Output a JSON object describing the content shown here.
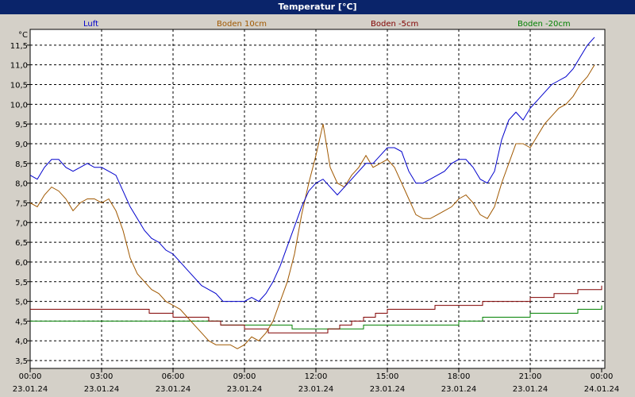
{
  "window": {
    "title": "Temperatur [°C]"
  },
  "chart_data": {
    "type": "line",
    "title": "Temperatur [°C]",
    "ylabel": "°C",
    "ylim": [
      3.3,
      11.9
    ],
    "yticks": [
      "3,5",
      "4,0",
      "4,5",
      "5,0",
      "5,5",
      "6,0",
      "6,5",
      "7,0",
      "7,5",
      "8,0",
      "8,5",
      "9,0",
      "9,5",
      "10,0",
      "10,5",
      "11,0",
      "11,5"
    ],
    "xlim": [
      0,
      24
    ],
    "xticks": [
      {
        "time": "00:00",
        "date": "23.01.24"
      },
      {
        "time": "03:00",
        "date": "23.01.24"
      },
      {
        "time": "06:00",
        "date": "23.01.24"
      },
      {
        "time": "09:00",
        "date": "23.01.24"
      },
      {
        "time": "12:00",
        "date": "23.01.24"
      },
      {
        "time": "15:00",
        "date": "23.01.24"
      },
      {
        "time": "18:00",
        "date": "23.01.24"
      },
      {
        "time": "21:00",
        "date": "23.01.24"
      },
      {
        "time": "00:00",
        "date": "24.01.24"
      }
    ],
    "grid": true,
    "legend_position": "top",
    "series": [
      {
        "name": "Luft",
        "color": "#0000cc",
        "x": [
          0,
          0.3,
          0.6,
          0.9,
          1.2,
          1.5,
          1.8,
          2.1,
          2.4,
          2.7,
          3.0,
          3.3,
          3.6,
          3.9,
          4.2,
          4.5,
          4.8,
          5.1,
          5.4,
          5.7,
          6.0,
          6.3,
          6.6,
          6.9,
          7.2,
          7.5,
          7.8,
          8.1,
          8.4,
          8.7,
          9.0,
          9.3,
          9.6,
          9.9,
          10.2,
          10.5,
          10.8,
          11.1,
          11.4,
          11.7,
          12.0,
          12.3,
          12.6,
          12.9,
          13.2,
          13.5,
          13.8,
          14.1,
          14.4,
          14.7,
          15.0,
          15.3,
          15.6,
          15.9,
          16.2,
          16.5,
          16.8,
          17.1,
          17.4,
          17.7,
          18.0,
          18.3,
          18.6,
          18.9,
          19.2,
          19.5,
          19.8,
          20.1,
          20.4,
          20.7,
          21.0,
          21.3,
          21.6,
          21.9,
          22.2,
          22.5,
          22.8,
          23.1,
          23.4,
          23.7
        ],
        "values": [
          8.2,
          8.1,
          8.4,
          8.6,
          8.6,
          8.4,
          8.3,
          8.4,
          8.5,
          8.4,
          8.4,
          8.3,
          8.2,
          7.8,
          7.4,
          7.1,
          6.8,
          6.6,
          6.5,
          6.3,
          6.2,
          6.0,
          5.8,
          5.6,
          5.4,
          5.3,
          5.2,
          5.0,
          5.0,
          5.0,
          5.0,
          5.1,
          5.0,
          5.2,
          5.5,
          5.9,
          6.4,
          6.9,
          7.4,
          7.8,
          8.0,
          8.1,
          7.9,
          7.7,
          7.9,
          8.1,
          8.3,
          8.5,
          8.5,
          8.7,
          8.9,
          8.9,
          8.8,
          8.3,
          8.0,
          8.0,
          8.1,
          8.2,
          8.3,
          8.5,
          8.6,
          8.6,
          8.4,
          8.1,
          8.0,
          8.3,
          9.1,
          9.6,
          9.8,
          9.6,
          9.9,
          10.1,
          10.3,
          10.5,
          10.6,
          10.7,
          10.9,
          11.2,
          11.5,
          11.7
        ]
      },
      {
        "name": "Boden 10cm",
        "color": "#a05800",
        "x": [
          0,
          0.3,
          0.6,
          0.9,
          1.2,
          1.5,
          1.8,
          2.1,
          2.4,
          2.7,
          3.0,
          3.3,
          3.6,
          3.9,
          4.2,
          4.5,
          4.8,
          5.1,
          5.4,
          5.7,
          6.0,
          6.3,
          6.6,
          6.9,
          7.2,
          7.5,
          7.8,
          8.1,
          8.4,
          8.7,
          9.0,
          9.3,
          9.6,
          9.9,
          10.2,
          10.5,
          10.8,
          11.1,
          11.4,
          11.7,
          12.0,
          12.3,
          12.6,
          12.9,
          13.2,
          13.5,
          13.8,
          14.1,
          14.4,
          14.7,
          15.0,
          15.3,
          15.6,
          15.9,
          16.2,
          16.5,
          16.8,
          17.1,
          17.4,
          17.7,
          18.0,
          18.3,
          18.6,
          18.9,
          19.2,
          19.5,
          19.8,
          20.1,
          20.4,
          20.7,
          21.0,
          21.3,
          21.6,
          21.9,
          22.2,
          22.5,
          22.8,
          23.1,
          23.4,
          23.7
        ],
        "values": [
          7.5,
          7.4,
          7.7,
          7.9,
          7.8,
          7.6,
          7.3,
          7.5,
          7.6,
          7.6,
          7.5,
          7.6,
          7.3,
          6.8,
          6.1,
          5.7,
          5.5,
          5.3,
          5.2,
          5.0,
          4.9,
          4.8,
          4.6,
          4.4,
          4.2,
          4.0,
          3.9,
          3.9,
          3.9,
          3.8,
          3.9,
          4.1,
          4.0,
          4.2,
          4.5,
          5.0,
          5.5,
          6.2,
          7.2,
          8.0,
          8.7,
          9.5,
          8.4,
          8.0,
          7.9,
          8.2,
          8.4,
          8.7,
          8.4,
          8.5,
          8.6,
          8.4,
          8.0,
          7.6,
          7.2,
          7.1,
          7.1,
          7.2,
          7.3,
          7.4,
          7.6,
          7.7,
          7.5,
          7.2,
          7.1,
          7.4,
          8.0,
          8.5,
          9.0,
          9.0,
          8.9,
          9.2,
          9.5,
          9.7,
          9.9,
          10.0,
          10.2,
          10.5,
          10.7,
          11.0
        ]
      },
      {
        "name": "Boden -5cm",
        "color": "#800000",
        "x": [
          0,
          1.5,
          3.0,
          4.5,
          5.0,
          6.0,
          7.5,
          8.0,
          9.0,
          10.0,
          11.0,
          12.0,
          12.5,
          13.0,
          13.5,
          14.0,
          14.5,
          15.0,
          16.0,
          17.0,
          18.0,
          19.0,
          20.0,
          21.0,
          22.0,
          23.0,
          24.0
        ],
        "values": [
          4.8,
          4.8,
          4.8,
          4.8,
          4.7,
          4.6,
          4.5,
          4.4,
          4.3,
          4.2,
          4.2,
          4.2,
          4.3,
          4.4,
          4.5,
          4.6,
          4.7,
          4.8,
          4.8,
          4.9,
          4.9,
          5.0,
          5.0,
          5.1,
          5.2,
          5.3,
          5.4
        ]
      },
      {
        "name": "Boden -20cm",
        "color": "#008000",
        "x": [
          0,
          3.0,
          6.0,
          8.0,
          10.0,
          11.0,
          12.0,
          14.0,
          16.0,
          18.0,
          19.0,
          20.0,
          21.0,
          22.0,
          23.0,
          24.0
        ],
        "values": [
          4.5,
          4.5,
          4.5,
          4.4,
          4.4,
          4.3,
          4.3,
          4.4,
          4.4,
          4.5,
          4.6,
          4.6,
          4.7,
          4.7,
          4.8,
          4.9
        ]
      }
    ]
  }
}
